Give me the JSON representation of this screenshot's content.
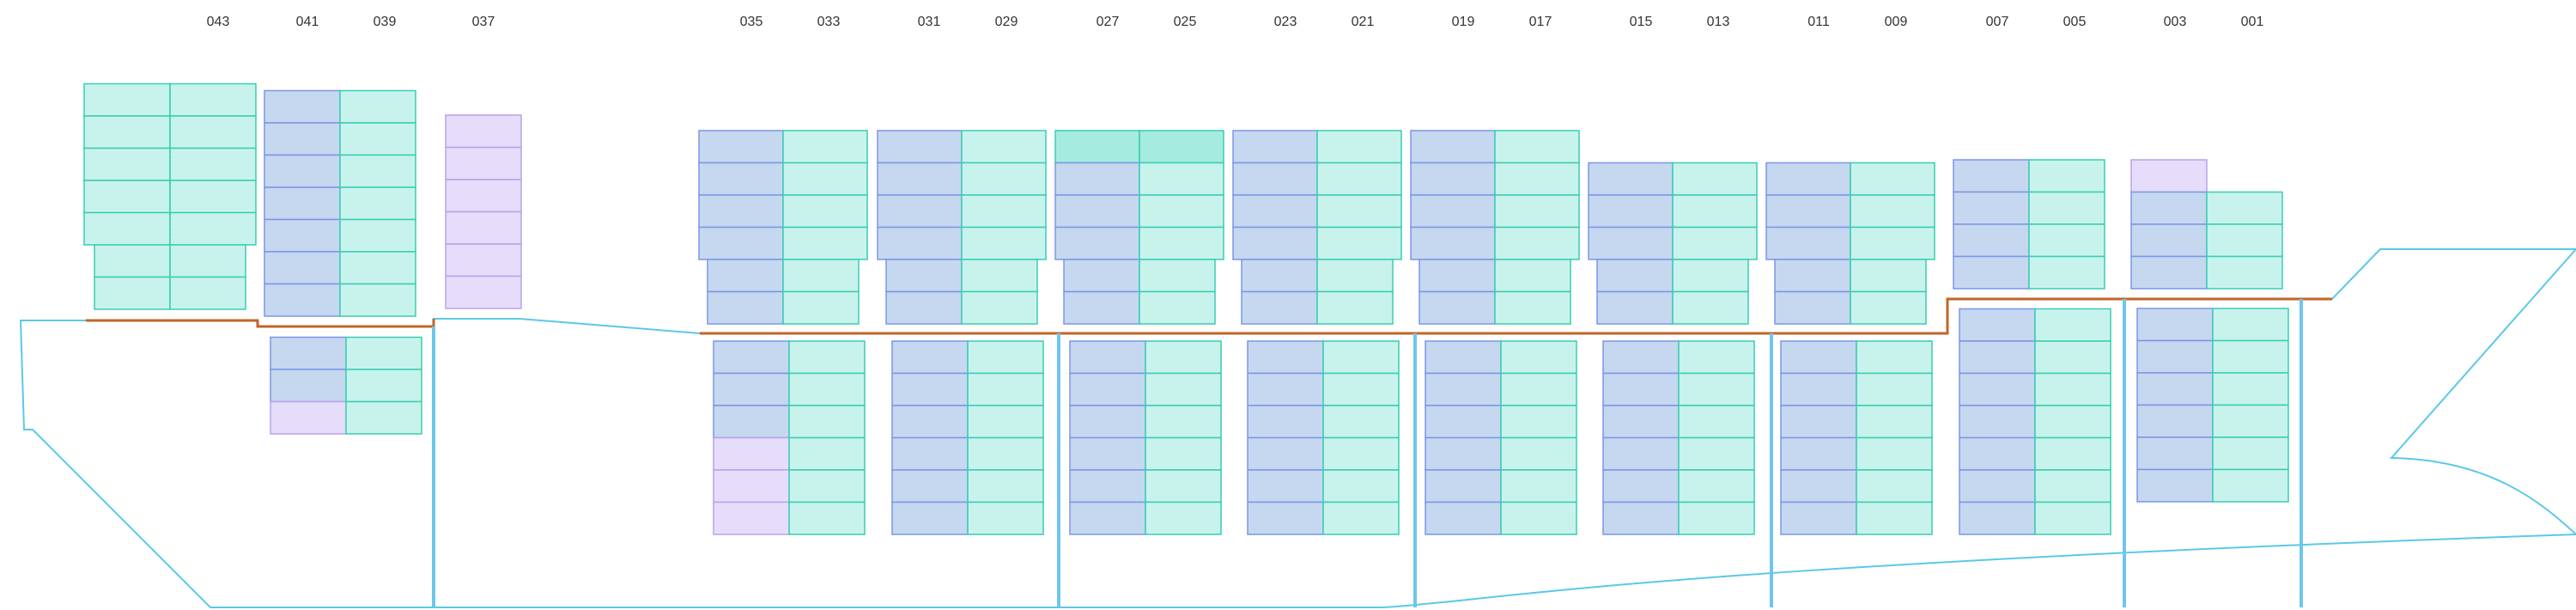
{
  "colors": {
    "hull_outline": "#5bc8e8",
    "deck_line": "#c0662a",
    "bulkhead": "#6ec6ef",
    "slot_blue_fill": "#c5d8f0",
    "slot_blue_stroke": "#7c95e6",
    "slot_green_fill": "#c8f3ec",
    "slot_green_stroke": "#39cdb3",
    "slot_purple_fill": "#e6ddfa",
    "slot_purple_stroke": "#b9a2ee",
    "slot_teal_fill": "#a6ebe0",
    "label_text": "#333333"
  },
  "bay_labels": [
    {
      "id": "043",
      "text": "043"
    },
    {
      "id": "041",
      "text": "041"
    },
    {
      "id": "039",
      "text": "039"
    },
    {
      "id": "037",
      "text": "037"
    },
    {
      "id": "035",
      "text": "035"
    },
    {
      "id": "033",
      "text": "033"
    },
    {
      "id": "031",
      "text": "031"
    },
    {
      "id": "029",
      "text": "029"
    },
    {
      "id": "027",
      "text": "027"
    },
    {
      "id": "025",
      "text": "025"
    },
    {
      "id": "023",
      "text": "023"
    },
    {
      "id": "021",
      "text": "021"
    },
    {
      "id": "019",
      "text": "019"
    },
    {
      "id": "017",
      "text": "017"
    },
    {
      "id": "015",
      "text": "015"
    },
    {
      "id": "013",
      "text": "013"
    },
    {
      "id": "011",
      "text": "011"
    },
    {
      "id": "009",
      "text": "009"
    },
    {
      "id": "007",
      "text": "007"
    },
    {
      "id": "005",
      "text": "005"
    },
    {
      "id": "003",
      "text": "003"
    },
    {
      "id": "001",
      "text": "001"
    }
  ],
  "stacks": [
    {
      "id": "deck-043",
      "columns": [
        [
          "G",
          "G",
          "G",
          "G",
          "G",
          "G",
          "G"
        ],
        [
          "G",
          "G",
          "G",
          "G",
          "G",
          "G",
          "G"
        ]
      ]
    },
    {
      "id": "deck-041",
      "columns": [
        [
          "B",
          "B",
          "B",
          "B",
          "B",
          "B",
          "B"
        ],
        [
          "G",
          "G",
          "G",
          "G",
          "G",
          "G",
          "G"
        ]
      ]
    },
    {
      "id": "hold-041",
      "columns": [
        [
          "B",
          "B",
          "P"
        ],
        [
          "G",
          "G",
          "G"
        ]
      ]
    },
    {
      "id": "deck-037",
      "columns": [
        [
          "P",
          "P",
          "P",
          "P",
          "P",
          "P"
        ]
      ]
    },
    {
      "id": "deck-035",
      "columns": [
        [
          "B",
          "B",
          "B",
          "B",
          "B",
          "B"
        ],
        [
          "G",
          "G",
          "G",
          "G",
          "G",
          "G"
        ]
      ]
    },
    {
      "id": "hold-035",
      "columns": [
        [
          "B",
          "B",
          "B",
          "P",
          "P",
          "P"
        ],
        [
          "G",
          "G",
          "G",
          "G",
          "G",
          "G"
        ]
      ]
    },
    {
      "id": "deck-031",
      "columns": [
        [
          "B",
          "B",
          "B",
          "B",
          "B",
          "B"
        ],
        [
          "G",
          "G",
          "G",
          "G",
          "G",
          "G"
        ]
      ]
    },
    {
      "id": "hold-031",
      "columns": [
        [
          "B",
          "B",
          "B",
          "B",
          "B",
          "B"
        ],
        [
          "G",
          "G",
          "G",
          "G",
          "G",
          "G"
        ]
      ]
    },
    {
      "id": "deck-027",
      "columns": [
        [
          "T",
          "B",
          "B",
          "B",
          "B",
          "B"
        ],
        [
          "T",
          "G",
          "G",
          "G",
          "G",
          "G"
        ]
      ]
    },
    {
      "id": "hold-027",
      "columns": [
        [
          "B",
          "B",
          "B",
          "B",
          "B",
          "B"
        ],
        [
          "G",
          "G",
          "G",
          "G",
          "G",
          "G"
        ]
      ]
    },
    {
      "id": "deck-023",
      "columns": [
        [
          "B",
          "B",
          "B",
          "B",
          "B",
          "B"
        ],
        [
          "G",
          "G",
          "G",
          "G",
          "G",
          "G"
        ]
      ]
    },
    {
      "id": "hold-023",
      "columns": [
        [
          "B",
          "B",
          "B",
          "B",
          "B",
          "B"
        ],
        [
          "G",
          "G",
          "G",
          "G",
          "G",
          "G"
        ]
      ]
    },
    {
      "id": "deck-019",
      "columns": [
        [
          "B",
          "B",
          "B",
          "B",
          "B",
          "B"
        ],
        [
          "G",
          "G",
          "G",
          "G",
          "G",
          "G"
        ]
      ]
    },
    {
      "id": "hold-019",
      "columns": [
        [
          "B",
          "B",
          "B",
          "B",
          "B",
          "B"
        ],
        [
          "G",
          "G",
          "G",
          "G",
          "G",
          "G"
        ]
      ]
    },
    {
      "id": "deck-015",
      "columns": [
        [
          "B",
          "B",
          "B",
          "B",
          "B"
        ],
        [
          "G",
          "G",
          "G",
          "G",
          "G"
        ]
      ]
    },
    {
      "id": "hold-015",
      "columns": [
        [
          "B",
          "B",
          "B",
          "B",
          "B",
          "B"
        ],
        [
          "G",
          "G",
          "G",
          "G",
          "G",
          "G"
        ]
      ]
    },
    {
      "id": "deck-011",
      "columns": [
        [
          "B",
          "B",
          "B",
          "B",
          "B"
        ],
        [
          "G",
          "G",
          "G",
          "G",
          "G"
        ]
      ]
    },
    {
      "id": "hold-011",
      "columns": [
        [
          "B",
          "B",
          "B",
          "B",
          "B",
          "B"
        ],
        [
          "G",
          "G",
          "G",
          "G",
          "G",
          "G"
        ]
      ]
    },
    {
      "id": "deck-007",
      "columns": [
        [
          "B",
          "B",
          "B",
          "B"
        ],
        [
          "G",
          "G",
          "G",
          "G"
        ]
      ]
    },
    {
      "id": "hold-007",
      "columns": [
        [
          "B",
          "B",
          "B",
          "B",
          "B",
          "B",
          "B"
        ],
        [
          "G",
          "G",
          "G",
          "G",
          "G",
          "G",
          "G"
        ]
      ]
    },
    {
      "id": "deck-003",
      "columns": [
        [
          "P",
          "B",
          "B",
          "B"
        ],
        [
          "",
          "G",
          "G",
          "G"
        ]
      ]
    },
    {
      "id": "hold-003",
      "columns": [
        [
          "B",
          "B",
          "B",
          "B",
          "B",
          "B"
        ],
        [
          "G",
          "G",
          "G",
          "G",
          "G",
          "G"
        ]
      ]
    }
  ]
}
